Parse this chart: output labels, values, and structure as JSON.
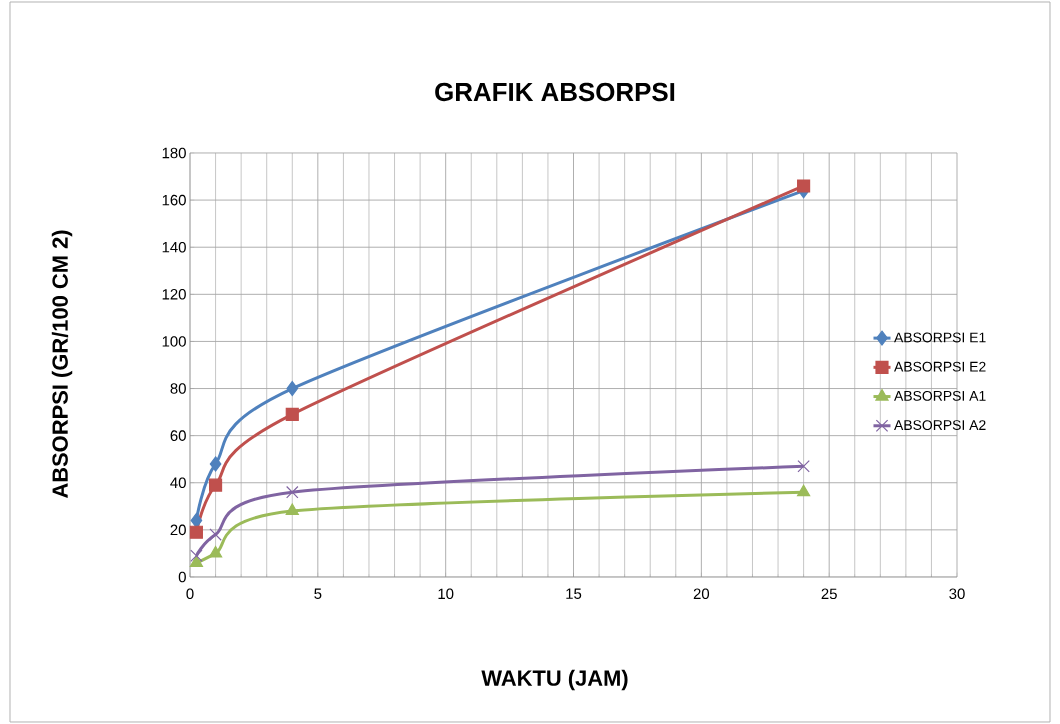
{
  "chart_data": {
    "type": "line",
    "title": "GRAFIK ABSORPSI",
    "xlabel": "WAKTU (JAM)",
    "ylabel": "ABSORPSI (GR/100 CM 2)",
    "xlim": [
      0,
      30
    ],
    "xticks": [
      0,
      5,
      10,
      15,
      20,
      25,
      30
    ],
    "ylim": [
      0,
      180
    ],
    "yticks": [
      0,
      20,
      40,
      60,
      80,
      100,
      120,
      140,
      160,
      180
    ],
    "grid": true,
    "legend": "right",
    "x": [
      0.25,
      1,
      4,
      24
    ],
    "series": [
      {
        "name": "ABSORPSI E1",
        "color": "#4f81bd",
        "marker": "diamond",
        "values": [
          24,
          48,
          80,
          164
        ]
      },
      {
        "name": "ABSORPSI E2",
        "color": "#c0504d",
        "marker": "square",
        "values": [
          19,
          39,
          69,
          166
        ]
      },
      {
        "name": "ABSORPSI A1",
        "color": "#9bbb59",
        "marker": "triangle",
        "values": [
          6,
          10,
          28,
          36
        ]
      },
      {
        "name": "ABSORPSI A2",
        "color": "#8064a2",
        "marker": "cross",
        "values": [
          9,
          18,
          36,
          47
        ]
      }
    ]
  }
}
